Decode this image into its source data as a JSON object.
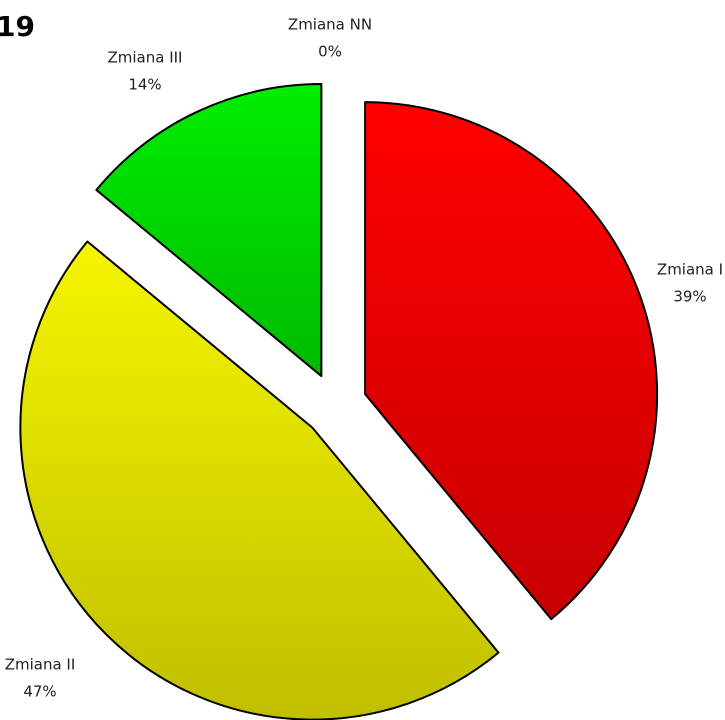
{
  "chart_data": {
    "type": "pie",
    "title": "19",
    "categories": [
      "Zmiana I",
      "Zmiana II",
      "Zmiana III",
      "Zmiana NN"
    ],
    "values": [
      39,
      47,
      14,
      0
    ],
    "value_labels": [
      "39%",
      "47%",
      "14%",
      "0%"
    ],
    "colors": [
      "#ff0000",
      "#f5f500",
      "#00ee00",
      "#4472c4"
    ]
  }
}
